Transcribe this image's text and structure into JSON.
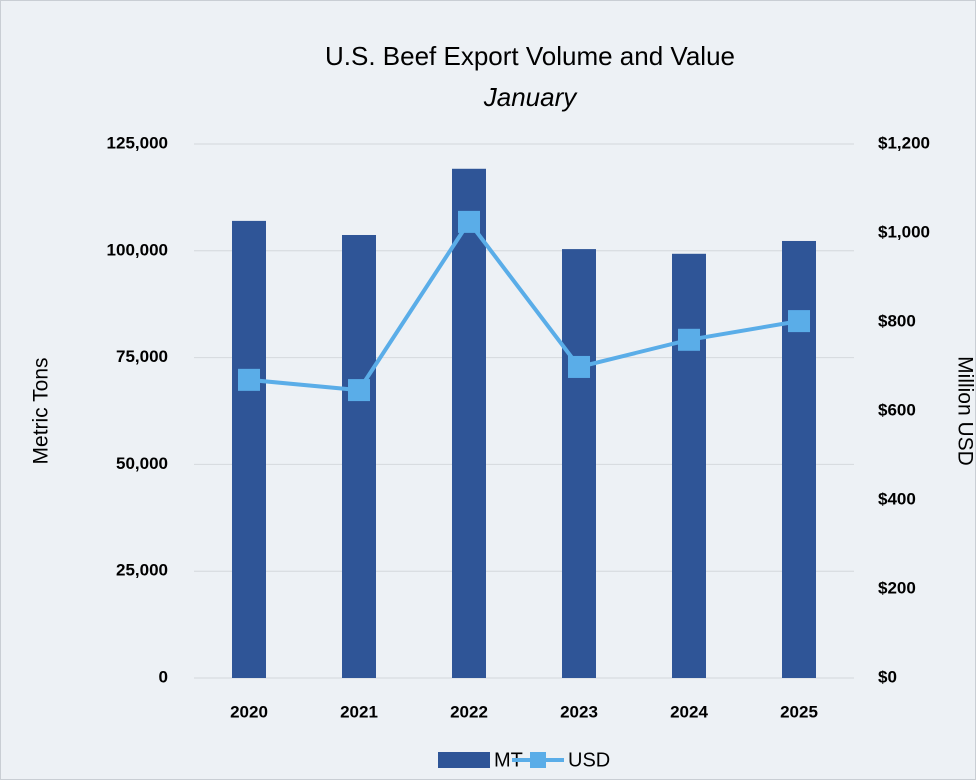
{
  "chart_data": {
    "type": "bar_line",
    "title": "U.S. Beef Export Volume and Value",
    "subtitle": "January",
    "ylabel": "Metric Tons",
    "y2label": "Million USD",
    "categories": [
      "2020",
      "2021",
      "2022",
      "2023",
      "2024",
      "2025"
    ],
    "series": [
      {
        "name": "MT",
        "type": "bar",
        "color": "#2f5597",
        "values": [
          107000,
          103700,
          119200,
          100400,
          99300,
          102300
        ]
      },
      {
        "name": "USD",
        "type": "line",
        "axis": "y2",
        "color": "#5aade8",
        "values": [
          670,
          647,
          1025,
          699,
          760,
          802
        ]
      }
    ],
    "ylim": [
      0,
      125000
    ],
    "yticks": [
      0,
      {
        "value": 25000,
        "label": "25,000"
      },
      {
        "value": 50000,
        "label": "50,000"
      },
      {
        "value": 75000,
        "label": "75,000"
      },
      {
        "value": 100000,
        "label": "100,000"
      },
      {
        "value": 125000,
        "label": "125,000"
      }
    ],
    "y2lim": [
      0,
      1200
    ],
    "y2ticks": [
      {
        "value": 0,
        "label": "$0"
      },
      {
        "value": 200,
        "label": "$200"
      },
      {
        "value": 400,
        "label": "$400"
      },
      {
        "value": 600,
        "label": "$600"
      },
      {
        "value": 800,
        "label": "$800"
      },
      {
        "value": 1000,
        "label": "$1,000"
      },
      {
        "value": 1200,
        "label": "$1,200"
      }
    ],
    "grid": true,
    "legend": "bottom"
  }
}
